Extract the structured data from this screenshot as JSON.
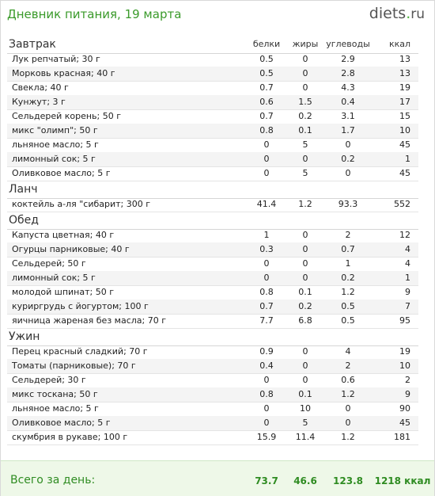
{
  "header": {
    "title": "Дневник питания, 19 марта",
    "logo_main": "diets",
    "logo_dot": ".",
    "logo_tld": "ru"
  },
  "columns": {
    "b": "белки",
    "z": "жиры",
    "u": "углеводы",
    "k": "ккал"
  },
  "sections": [
    {
      "name": "Завтрак",
      "items": [
        [
          "Лук репчатый; 30 г",
          "0.5",
          "0",
          "2.9",
          "13"
        ],
        [
          "Морковь красная; 40 г",
          "0.5",
          "0",
          "2.8",
          "13"
        ],
        [
          "Свекла; 40 г",
          "0.7",
          "0",
          "4.3",
          "19"
        ],
        [
          "Кунжут; 3 г",
          "0.6",
          "1.5",
          "0.4",
          "17"
        ],
        [
          "Сельдерей корень; 50 г",
          "0.7",
          "0.2",
          "3.1",
          "15"
        ],
        [
          "микс \"олимп\"; 50 г",
          "0.8",
          "0.1",
          "1.7",
          "10"
        ],
        [
          "льняное масло; 5 г",
          "0",
          "5",
          "0",
          "45"
        ],
        [
          "лимонный сок; 5 г",
          "0",
          "0",
          "0.2",
          "1"
        ],
        [
          "Оливковое масло; 5 г",
          "0",
          "5",
          "0",
          "45"
        ]
      ]
    },
    {
      "name": "Ланч",
      "items": [
        [
          "коктейль а-ля \"сибарит; 300 г",
          "41.4",
          "1.2",
          "93.3",
          "552"
        ]
      ]
    },
    {
      "name": "Обед",
      "items": [
        [
          "Капуста цветная; 40 г",
          "1",
          "0",
          "2",
          "12"
        ],
        [
          "Огурцы парниковые; 40 г",
          "0.3",
          "0",
          "0.7",
          "4"
        ],
        [
          "Сельдерей; 50 г",
          "0",
          "0",
          "1",
          "4"
        ],
        [
          "лимонный сок; 5 г",
          "0",
          "0",
          "0.2",
          "1"
        ],
        [
          "молодой шпинат; 50 г",
          "0.8",
          "0.1",
          "1.2",
          "9"
        ],
        [
          "куриргрудь с йогуртом; 100 г",
          "0.7",
          "0.2",
          "0.5",
          "7"
        ],
        [
          "яичница жареная без масла; 70 г",
          "7.7",
          "6.8",
          "0.5",
          "95"
        ]
      ]
    },
    {
      "name": "Ужин",
      "items": [
        [
          "Перец красный сладкий; 70 г",
          "0.9",
          "0",
          "4",
          "19"
        ],
        [
          "Томаты (парниковые); 70 г",
          "0.4",
          "0",
          "2",
          "10"
        ],
        [
          "Сельдерей; 30 г",
          "0",
          "0",
          "0.6",
          "2"
        ],
        [
          "микс тоскана; 50 г",
          "0.8",
          "0.1",
          "1.2",
          "9"
        ],
        [
          "льняное масло; 5 г",
          "0",
          "10",
          "0",
          "90"
        ],
        [
          "Оливковое масло; 5 г",
          "0",
          "5",
          "0",
          "45"
        ],
        [
          "скумбрия в рукаве; 100 г",
          "15.9",
          "11.4",
          "1.2",
          "181"
        ]
      ]
    }
  ],
  "total": {
    "label": "Всего за день:",
    "b": "73.7",
    "z": "46.6",
    "u": "123.8",
    "k": "1218 ккал"
  }
}
